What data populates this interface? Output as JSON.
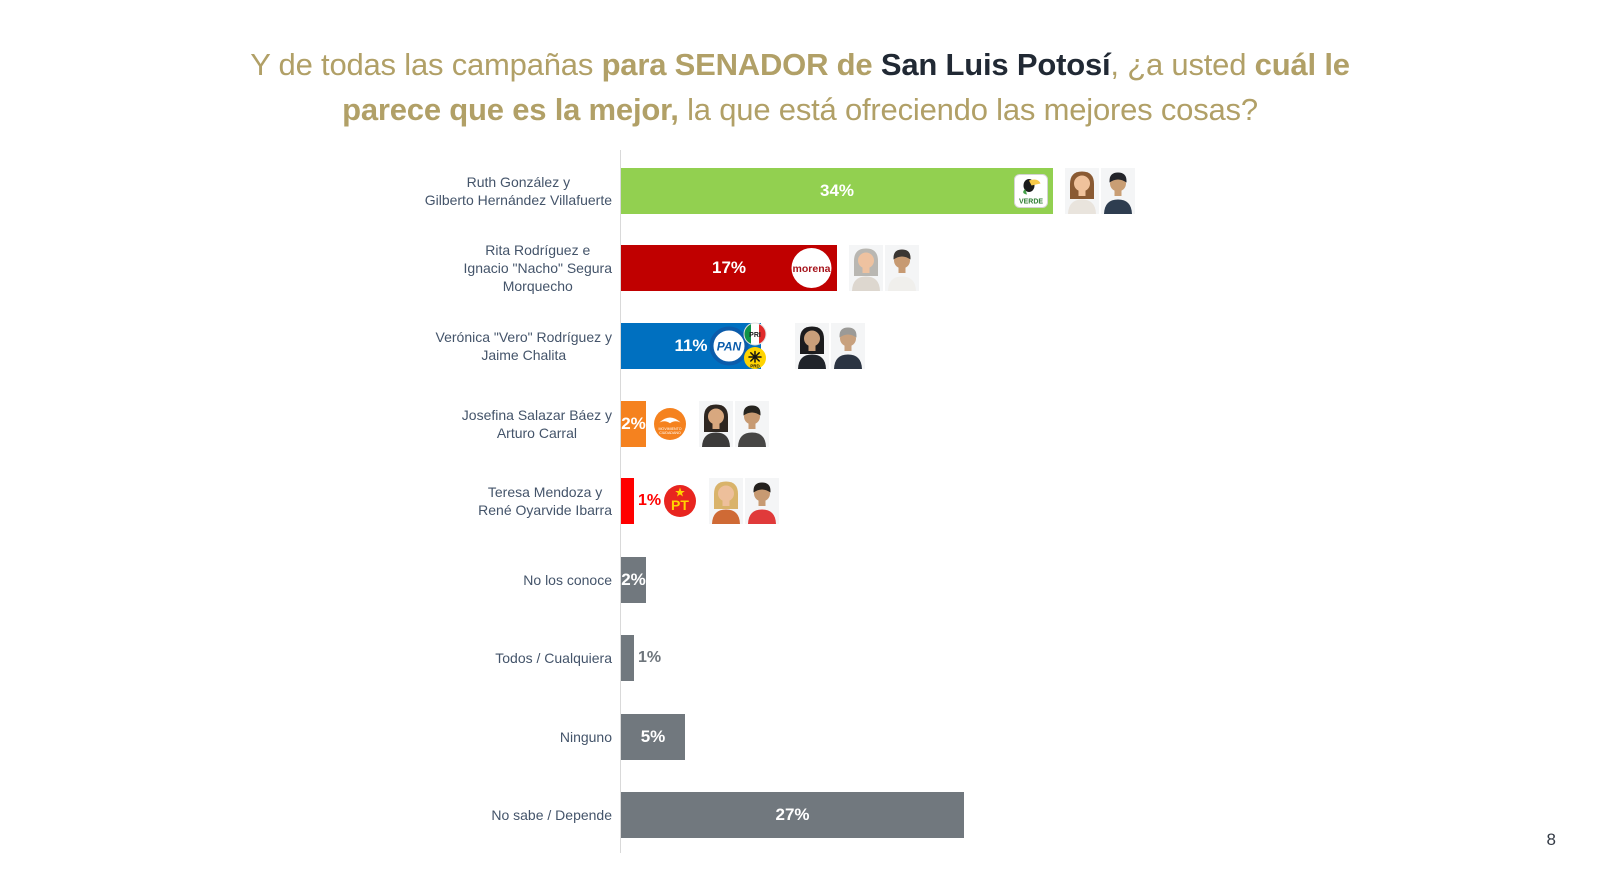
{
  "page": {
    "number": "8"
  },
  "title": {
    "colors": {
      "gold": "#B1A067",
      "dark": "#212934"
    },
    "segments": [
      {
        "text": "Y de todas las campañas ",
        "bold": false,
        "color": "gold"
      },
      {
        "text": "para SENADOR de ",
        "bold": true,
        "color": "gold"
      },
      {
        "text": "San Luis Potosí",
        "bold": true,
        "color": "dark"
      },
      {
        "text": ", ¿a usted ",
        "bold": false,
        "color": "gold"
      },
      {
        "text": "cuál le",
        "bold": true,
        "color": "gold"
      },
      {
        "br": true
      },
      {
        "text": "parece que es la mejor,",
        "bold": true,
        "color": "gold"
      },
      {
        "text": " la que está ofreciendo las mejores cosas?",
        "bold": false,
        "color": "gold"
      }
    ]
  },
  "chart_data": {
    "type": "bar",
    "orientation": "horizontal",
    "unit": "%",
    "xlim": [
      0,
      36
    ],
    "grid": false,
    "title": "Y de todas las campañas para SENADOR de San Luis Potosí, ¿a usted cuál le parece que es la mejor, la que está ofreciendo las mejores cosas?",
    "categories": [
      "Ruth González y Gilberto Hernández Villafuerte",
      "Rita Rodríguez e Ignacio \"Nacho\" Segura Morquecho",
      "Verónica \"Vero\" Rodríguez y Jaime Chalita",
      "Josefina Salazar Báez y Arturo Carral",
      "Teresa Mendoza y René Oyarvide Ibarra",
      "No los conoce",
      "Todos / Cualquiera",
      "Ninguno",
      "No sabe / Depende"
    ],
    "values": [
      34,
      17,
      11,
      2,
      1,
      2,
      1,
      5,
      27
    ],
    "rows": [
      {
        "label_lines": [
          "Ruth González y",
          "Gilberto Hernández Villafuerte"
        ],
        "value": 34,
        "value_label": "34%",
        "bar_color": "#92D050",
        "value_placement": "inside",
        "value_color": "#FFFFFF",
        "logo_inside": "verde",
        "photos": [
          {
            "kind": "woman",
            "hair": "#8a5a33",
            "skin": "#f0c29c",
            "top": "#e9e4dd"
          },
          {
            "kind": "man",
            "hair": "#23242a",
            "skin": "#c99e74",
            "top": "#2e3d50"
          }
        ]
      },
      {
        "label_lines": [
          "Rita Rodríguez e",
          "Ignacio \"Nacho\" Segura",
          "Morquecho"
        ],
        "value": 17,
        "value_label": "17%",
        "bar_color": "#C00000",
        "value_placement": "inside",
        "value_color": "#FFFFFF",
        "logo_inside": "morena",
        "photos": [
          {
            "kind": "woman",
            "hair": "#b9b7b2",
            "skin": "#eec2a0",
            "top": "#ddd7cf"
          },
          {
            "kind": "man",
            "hair": "#3a3632",
            "skin": "#c79a72",
            "top": "#f0efec"
          }
        ]
      },
      {
        "label_lines": [
          "Verónica \"Vero\" Rodríguez y",
          "Jaime Chalita"
        ],
        "value": 11,
        "value_label": "11%",
        "bar_color": "#0070C0",
        "value_placement": "inside",
        "value_color": "#FFFFFF",
        "logo_cluster": [
          "pan",
          "pri",
          "prd"
        ],
        "photos": [
          {
            "kind": "woman",
            "hair": "#1c1c1e",
            "skin": "#c99f7a",
            "top": "#20242a"
          },
          {
            "kind": "man",
            "hair": "#9b9a97",
            "skin": "#c8a17e",
            "top": "#2b3442"
          }
        ]
      },
      {
        "label_lines": [
          "Josefina Salazar Báez y",
          "Arturo Carral"
        ],
        "value": 2,
        "value_label": "2%",
        "bar_color": "#F5821F",
        "value_placement": "inside",
        "value_color": "#FFFFFF",
        "logo_after": "mc",
        "photos": [
          {
            "kind": "woman",
            "hair": "#2e2620",
            "skin": "#d8a87f",
            "top": "#3c3b3a"
          },
          {
            "kind": "man",
            "hair": "#26241f",
            "skin": "#c79a72",
            "top": "#474645"
          }
        ]
      },
      {
        "label_lines": [
          "Teresa Mendoza y",
          "René Oyarvide Ibarra"
        ],
        "value": 1,
        "value_label": "1%",
        "bar_color": "#FF0000",
        "value_placement": "outside",
        "value_color": "#FF0000",
        "logo_after": "pt",
        "photos": [
          {
            "kind": "woman",
            "hair": "#d9b36a",
            "skin": "#edbf9b",
            "top": "#cf6a35"
          },
          {
            "kind": "man",
            "hair": "#23201d",
            "skin": "#c79a72",
            "top": "#e03a3a"
          }
        ]
      },
      {
        "label_lines": [
          "No los conoce"
        ],
        "value": 2,
        "value_label": "2%",
        "bar_color": "#71787E",
        "value_placement": "inside",
        "value_color": "#FFFFFF"
      },
      {
        "label_lines": [
          "Todos / Cualquiera"
        ],
        "value": 1,
        "value_label": "1%",
        "bar_color": "#71787E",
        "value_placement": "outside",
        "value_color": "#6E757C"
      },
      {
        "label_lines": [
          "Ninguno"
        ],
        "value": 5,
        "value_label": "5%",
        "bar_color": "#71787E",
        "value_placement": "inside",
        "value_color": "#FFFFFF"
      },
      {
        "label_lines": [
          "No sabe / Depende"
        ],
        "value": 27,
        "value_label": "27%",
        "bar_color": "#71787E",
        "value_placement": "inside",
        "value_color": "#FFFFFF"
      }
    ]
  }
}
